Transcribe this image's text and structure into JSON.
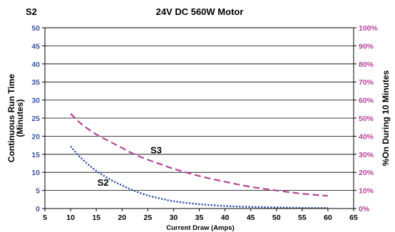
{
  "chart_data": {
    "type": "line",
    "corner_label": "S2",
    "title": "24V DC 560W Motor",
    "xlabel": "Current Draw (Amps)",
    "ylabel_left_line1": "Continuous Run Time",
    "ylabel_left_line2": "(Minutes)",
    "ylabel_right": "%On During 10 Minutes",
    "xlim": [
      5,
      65
    ],
    "ylim_left": [
      0,
      50
    ],
    "ylim_right": [
      0,
      100
    ],
    "x_ticks": [
      "5",
      "10",
      "15",
      "20",
      "25",
      "30",
      "35",
      "40",
      "45",
      "50",
      "55",
      "60",
      "65"
    ],
    "y_left_ticks": [
      "0",
      "5",
      "10",
      "15",
      "20",
      "25",
      "30",
      "35",
      "40",
      "45",
      "50"
    ],
    "y_right_ticks": [
      "0%",
      "10%",
      "20%",
      "30%",
      "40%",
      "50%",
      "60%",
      "70%",
      "80%",
      "90%",
      "100%"
    ],
    "grid": "horizontal",
    "colors": {
      "left_axis": "#3a55a4",
      "right_axis": "#b5449a",
      "s2_line": "#2b4ea8",
      "s3_line": "#b5449a",
      "frame": "#000000"
    },
    "series": [
      {
        "name": "S2",
        "axis": "left",
        "style": "dotted",
        "x": [
          10,
          12,
          15,
          18,
          20,
          22,
          25,
          28,
          30,
          35,
          40,
          45,
          50,
          55,
          60
        ],
        "y": [
          17.2,
          14.0,
          10.4,
          7.8,
          6.4,
          5.1,
          3.6,
          2.6,
          2.0,
          1.2,
          0.7,
          0.45,
          0.3,
          0.2,
          0.15
        ]
      },
      {
        "name": "S3",
        "axis": "right",
        "style": "dashed",
        "x": [
          10,
          12,
          15,
          18,
          20,
          22,
          25,
          28,
          30,
          35,
          40,
          45,
          50,
          55,
          60
        ],
        "y": [
          52.5,
          47.0,
          41.0,
          36.5,
          33.5,
          30.5,
          27.0,
          24.0,
          22.0,
          18.0,
          14.8,
          12.0,
          10.0,
          8.2,
          7.0
        ]
      }
    ]
  }
}
